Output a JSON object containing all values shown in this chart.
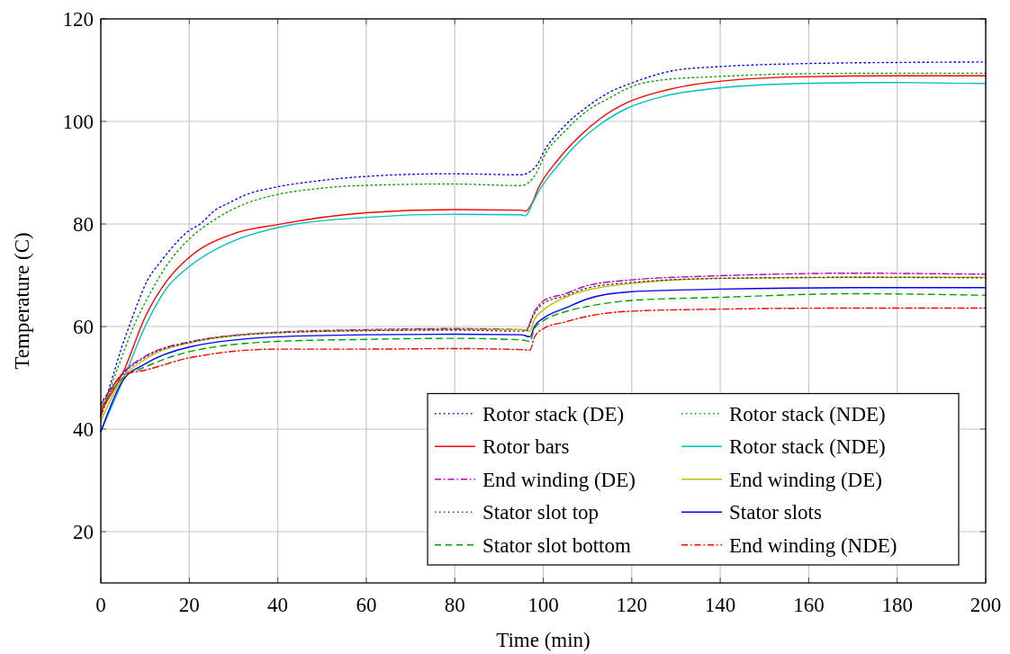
{
  "chart_data": {
    "type": "line",
    "xlabel": "Time (min)",
    "ylabel": "Temperature (C)",
    "xlim": [
      0,
      200
    ],
    "ylim": [
      10,
      120
    ],
    "xticks": [
      0,
      20,
      40,
      60,
      80,
      100,
      120,
      140,
      160,
      180,
      200
    ],
    "yticks": [
      20,
      40,
      60,
      80,
      100,
      120
    ],
    "grid": true,
    "legend": "bottom right",
    "series": [
      {
        "name": "Rotor stack (DE)",
        "color": "#0000ff",
        "line_style": "dotted",
        "x": [
          0,
          2.6,
          4.7,
          6.4,
          8.4,
          10.4,
          13.2,
          15.9,
          19.9,
          22.3,
          26,
          28.7,
          32.8,
          39.6,
          49,
          58.6,
          78.9,
          95,
          98.5,
          100,
          105,
          110,
          115,
          120,
          130,
          140,
          160,
          180,
          200
        ],
        "values": [
          42.5,
          50,
          55.9,
          60,
          64.7,
          68.8,
          72.3,
          75.2,
          78.7,
          79.9,
          82.8,
          84,
          85.7,
          87.2,
          88.4,
          89.2,
          89.8,
          89.6,
          91.4,
          93.9,
          99.3,
          102.9,
          105.7,
          107.5,
          110,
          110.7,
          111.3,
          111.5,
          111.6
        ]
      },
      {
        "name": "Rotor stack (NDE)",
        "color": "#00a000",
        "line_style": "dotted",
        "x": [
          0,
          4.3,
          7.4,
          11.1,
          15.2,
          19.9,
          26,
          32.8,
          39.6,
          49,
          58.6,
          78.9,
          95,
          98.5,
          100,
          105,
          110,
          115,
          120,
          128,
          138,
          158,
          180,
          200
        ],
        "values": [
          43,
          53,
          60,
          66.4,
          72.3,
          77,
          81,
          84,
          85.7,
          86.9,
          87.5,
          87.8,
          87.5,
          90,
          92.9,
          98.2,
          102.1,
          104.6,
          106.8,
          108.2,
          108.7,
          109.3,
          109.4,
          109.4
        ]
      },
      {
        "name": "Rotor bars",
        "color": "#ff0000",
        "line_style": "solid",
        "x": [
          0,
          5,
          10,
          15,
          20,
          30,
          40,
          60,
          80,
          95,
          96,
          97.6,
          98.8,
          103.3,
          108.2,
          113.1,
          118.8,
          127.7,
          138.4,
          158.4,
          180,
          200
        ],
        "values": [
          43.6,
          51,
          61.8,
          69,
          73.5,
          78.1,
          79.9,
          82.2,
          82.8,
          82.7,
          82.5,
          84.3,
          86.8,
          92.5,
          97.1,
          100.7,
          103.6,
          106.1,
          107.7,
          108.7,
          108.9,
          108.9
        ]
      },
      {
        "name": "Rotor stack (NDE)",
        "color": "#00bfbf",
        "line_style": "solid",
        "x": [
          0,
          5,
          10,
          15,
          20,
          30,
          40,
          60,
          80,
          95,
          96,
          97.6,
          98.8,
          103.3,
          108.2,
          113.1,
          118.8,
          127.7,
          138.4,
          158.4,
          177.6,
          200
        ],
        "values": [
          39.5,
          49.5,
          60,
          67.6,
          71.7,
          76.7,
          79.3,
          81.3,
          81.9,
          81.8,
          81.6,
          84.1,
          86.1,
          91.4,
          96.1,
          99.6,
          102.5,
          105,
          106.4,
          107.4,
          107.6,
          107.4
        ]
      },
      {
        "name": "End winding (DE)",
        "color": "#bf00bf",
        "line_style": "dashdot",
        "x": [
          0,
          5,
          10,
          20,
          40,
          60,
          80,
          95,
          96,
          98,
          100,
          105,
          110,
          120,
          140,
          170,
          200
        ],
        "values": [
          44.8,
          51,
          54.2,
          57,
          58.9,
          59.4,
          59.6,
          59.4,
          59.3,
          62.9,
          65,
          66.4,
          68,
          69.1,
          69.9,
          70.4,
          70.2
        ]
      },
      {
        "name": "End winding (DE)",
        "color": "#bfbf00",
        "line_style": "solid",
        "x": [
          0,
          5,
          10,
          20,
          40,
          60,
          80,
          95,
          97,
          98,
          100,
          105,
          110,
          120,
          140,
          170,
          200
        ],
        "values": [
          41.6,
          50,
          53.6,
          56.8,
          58.8,
          59.2,
          59.4,
          59.4,
          59.1,
          61.4,
          63.2,
          65.7,
          67.1,
          68.4,
          69.4,
          69.6,
          69.6
        ]
      },
      {
        "name": "Stator slot top",
        "color": "#404040",
        "line_style": "dotted",
        "x": [
          0,
          5,
          10,
          20,
          40,
          60,
          80,
          95,
          96,
          98,
          100,
          105,
          110,
          120,
          140,
          170,
          200
        ],
        "values": [
          45,
          50.8,
          54,
          56.9,
          58.8,
          59.2,
          59.3,
          59.1,
          59.1,
          62.5,
          64.5,
          66,
          67.5,
          68.6,
          69.4,
          69.6,
          69.5
        ]
      },
      {
        "name": "Stator slots",
        "color": "#0000ff",
        "line_style": "solid",
        "x": [
          0,
          5,
          10,
          20,
          40,
          60,
          80,
          95,
          97,
          98,
          100,
          105,
          110,
          120,
          140,
          170,
          200
        ],
        "values": [
          39.5,
          49.5,
          52.7,
          56,
          58,
          58.4,
          58.5,
          58.4,
          58,
          60,
          61.6,
          63.6,
          65.4,
          66.8,
          67.3,
          67.6,
          67.6
        ]
      },
      {
        "name": "Stator slot bottom",
        "color": "#00a000",
        "line_style": "dashed",
        "x": [
          0,
          5,
          10,
          20,
          40,
          60,
          80,
          95,
          97,
          98,
          100,
          105,
          110,
          120,
          140,
          170,
          200
        ],
        "values": [
          44.2,
          50,
          52.1,
          55.1,
          57.1,
          57.5,
          57.7,
          57.4,
          57.1,
          59.6,
          61.1,
          62.9,
          63.9,
          65.1,
          65.7,
          66.4,
          66.1
        ]
      },
      {
        "name": "End winding (NDE)",
        "color": "#ff0000",
        "line_style": "dashdot",
        "x": [
          0,
          5,
          10,
          20,
          40,
          60,
          80,
          95,
          97,
          98,
          100,
          105,
          110,
          120,
          140,
          170,
          200
        ],
        "values": [
          42.5,
          50.6,
          51.5,
          53.9,
          55.6,
          55.6,
          55.7,
          55.5,
          55.4,
          57.9,
          59.6,
          60.9,
          62,
          63,
          63.4,
          63.6,
          63.6
        ]
      }
    ]
  }
}
